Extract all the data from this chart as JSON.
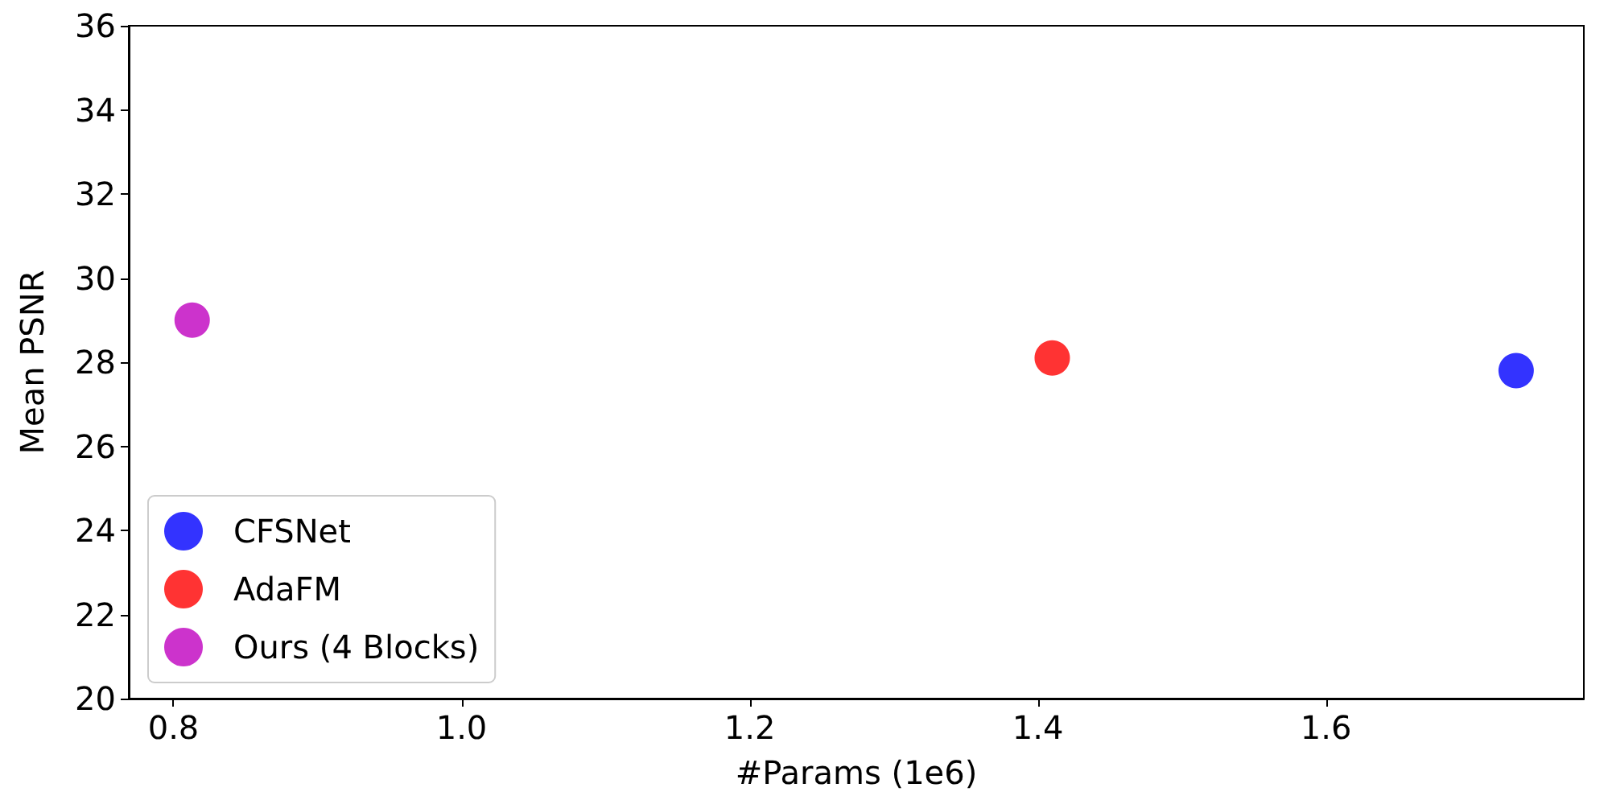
{
  "chart_data": {
    "type": "scatter",
    "xlabel": "#Params (1e6)",
    "ylabel": "Mean PSNR",
    "xlim": [
      0.769,
      1.779
    ],
    "ylim": [
      20,
      36
    ],
    "xticks": [
      {
        "value": 0.8,
        "label": "0.8"
      },
      {
        "value": 1.0,
        "label": "1.0"
      },
      {
        "value": 1.2,
        "label": "1.2"
      },
      {
        "value": 1.4,
        "label": "1.4"
      },
      {
        "value": 1.6,
        "label": "1.6"
      }
    ],
    "yticks": [
      20,
      22,
      24,
      26,
      28,
      30,
      32,
      34,
      36
    ],
    "grid": false,
    "legend": "bottom left",
    "marker": "circle",
    "series": [
      {
        "name": "CFSNet",
        "color": "#0000ff",
        "x": [
          1.732
        ],
        "values": [
          27.8
        ]
      },
      {
        "name": "AdaFM",
        "color": "#ff0000",
        "x": [
          1.41
        ],
        "values": [
          28.1
        ]
      },
      {
        "name": "Ours (4 Blocks)",
        "color": "#bf00bf",
        "x": [
          0.813
        ],
        "values": [
          29.0
        ]
      }
    ]
  }
}
